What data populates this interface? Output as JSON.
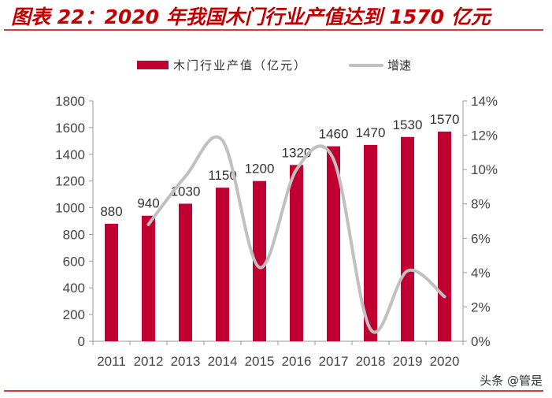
{
  "header": {
    "title": "图表 22：2020 年我国木门行业产值达到 1570 亿元"
  },
  "footer": {
    "source": "头条 @管是"
  },
  "colors": {
    "bar": "#c00030",
    "line": "#c0c0c0",
    "title": "#c00000",
    "rule": "#c00000"
  },
  "chart_data": {
    "type": "bar+line",
    "categories": [
      "2011",
      "2012",
      "2013",
      "2014",
      "2015",
      "2016",
      "2017",
      "2018",
      "2019",
      "2020"
    ],
    "series": [
      {
        "name": "木门行业产值（亿元）",
        "type": "bar",
        "axis": "left",
        "values": [
          880,
          940,
          1030,
          1150,
          1200,
          1320,
          1460,
          1470,
          1530,
          1570
        ]
      },
      {
        "name": "增速",
        "type": "line",
        "axis": "right",
        "values": [
          null,
          6.8,
          9.6,
          11.7,
          4.3,
          10.0,
          10.6,
          0.7,
          4.1,
          2.6
        ]
      }
    ],
    "data_labels": [
      "880",
      "940",
      "1030",
      "1150",
      "1200",
      "1320",
      "1460",
      "1470",
      "1530",
      "1570"
    ],
    "y_left": {
      "range": [
        0,
        1800
      ],
      "ticks": [
        "0",
        "200",
        "400",
        "600",
        "800",
        "1000",
        "1200",
        "1400",
        "1600",
        "1800"
      ]
    },
    "y_right": {
      "range": [
        0,
        14
      ],
      "ticks": [
        "0%",
        "2%",
        "4%",
        "6%",
        "8%",
        "10%",
        "12%",
        "14%"
      ]
    },
    "legend": {
      "placement": "top",
      "items": [
        "木门行业产值（亿元）",
        "增速"
      ]
    },
    "grid": false
  }
}
